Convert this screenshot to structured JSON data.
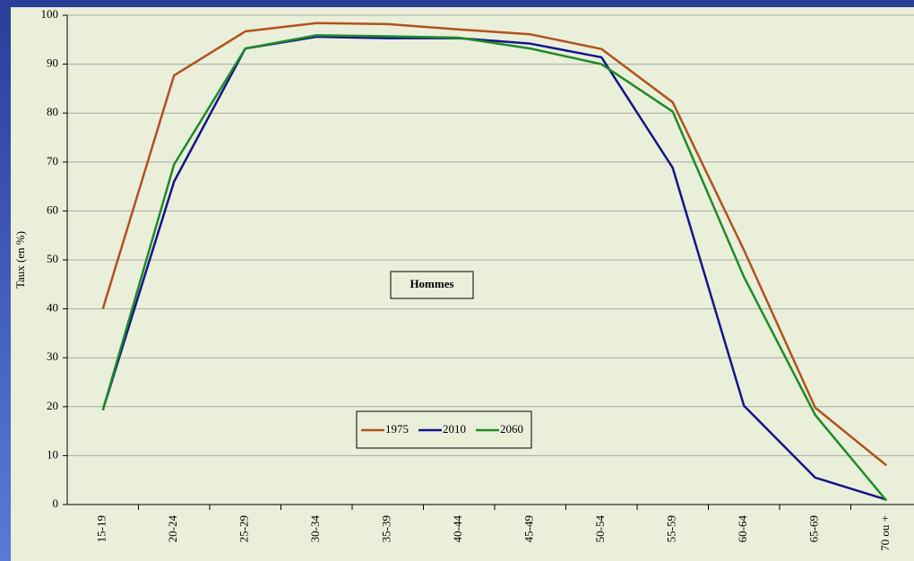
{
  "chart_data": {
    "type": "line",
    "y_label": "Taux (en %)",
    "annotation": "Hommes",
    "categories": [
      "15-19",
      "20-24",
      "25-29",
      "30-34",
      "35-39",
      "40-44",
      "45-49",
      "50-54",
      "55-59",
      "60-64",
      "65-69",
      "70 ou +"
    ],
    "series": [
      {
        "name": "1975",
        "color": "#b0521e",
        "values": [
          40,
          87.7,
          96.7,
          98.4,
          98.2,
          97.1,
          96.1,
          93.1,
          82.2,
          52,
          19.8,
          8
        ]
      },
      {
        "name": "2010",
        "color": "#14148a",
        "values": [
          19.3,
          66,
          93.2,
          95.6,
          95.3,
          95.3,
          94.2,
          91.4,
          68.8,
          20.2,
          5.5,
          1
        ]
      },
      {
        "name": "2060",
        "color": "#1f8a2a",
        "values": [
          19.3,
          69.5,
          93.2,
          95.9,
          95.7,
          95.4,
          93.2,
          90,
          80.3,
          46.5,
          18.3,
          0.8
        ]
      }
    ],
    "ylim": [
      0,
      100
    ],
    "yticks": [
      0,
      10,
      20,
      30,
      40,
      50,
      60,
      70,
      80,
      90,
      100
    ],
    "grid": true
  }
}
